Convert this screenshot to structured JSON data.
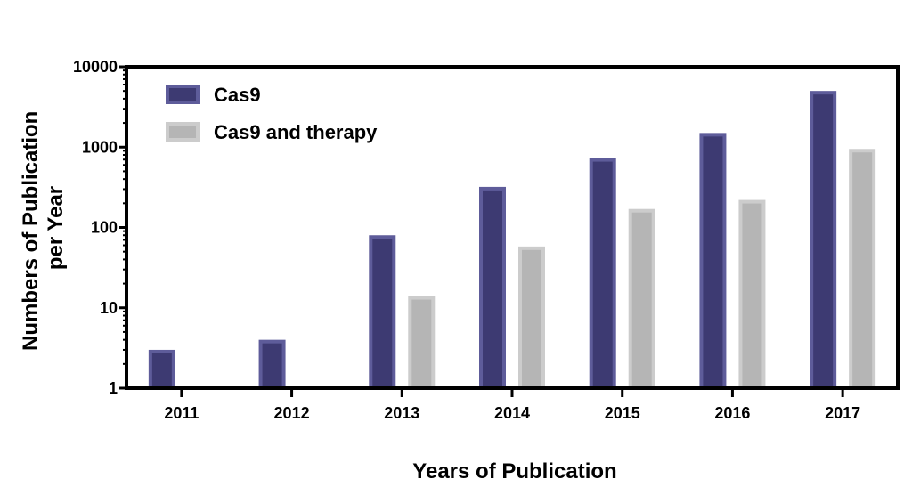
{
  "chart_data": {
    "type": "bar",
    "scale": "log",
    "categories": [
      "2011",
      "2012",
      "2013",
      "2014",
      "2015",
      "2016",
      "2017"
    ],
    "series": [
      {
        "name": "Cas9",
        "values": [
          3,
          4,
          80,
          320,
          730,
          1500,
          5000
        ],
        "color": "#3d3a72",
        "edge_color": "#5e5c9a"
      },
      {
        "name": "Cas9 and therapy",
        "values": [
          null,
          null,
          14,
          58,
          170,
          220,
          950
        ],
        "color": "#b5b5b5",
        "edge_color": "#cccccc"
      }
    ],
    "ylim": [
      1,
      10000
    ],
    "yticks": [
      1,
      10,
      100,
      1000,
      10000
    ],
    "ytick_labels": [
      "1",
      "10",
      "100",
      "1000",
      "10000"
    ],
    "xlabel": "Years of Publication",
    "ylabel": [
      "Numbers of Publication",
      "per Year"
    ],
    "legend_position": "top-left",
    "grid": false
  }
}
